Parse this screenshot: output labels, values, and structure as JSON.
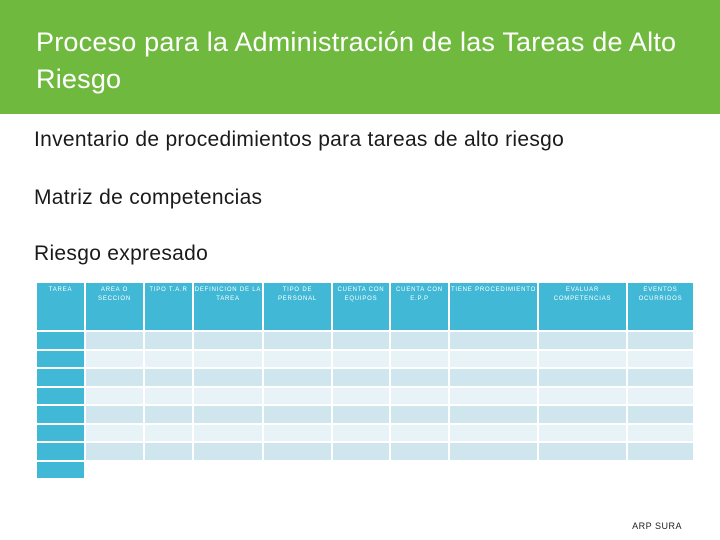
{
  "slide": {
    "title": "Proceso para la Administración de las Tareas de Alto Riesgo",
    "bullets": [
      "Inventario de procedimientos para tareas de alto riesgo",
      "Matriz de competencias",
      "Riesgo expresado"
    ],
    "footer": "ARP SURA"
  },
  "table": {
    "headers": [
      "TAREA",
      "AREA O SECCION",
      "TIPO T.A.R",
      "DEFINICION DE LA TAREA",
      "TIPO DE PERSONAL",
      "CUENTA CON EQUIPOS",
      "CUENTA CON E.P.P",
      "TIENE PROCEDIMIENTO",
      "EVALUAR COMPETENCIAS",
      "EVENTOS OCURRIDOS"
    ]
  },
  "colors": {
    "title_band": "#6fb93f",
    "header_cell": "#41b8d6",
    "row_dark": "#cfe6ee",
    "row_light": "#e8f3f7"
  }
}
